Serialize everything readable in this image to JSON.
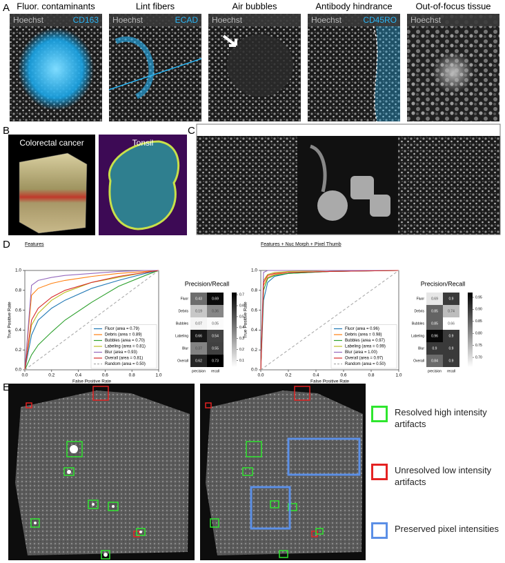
{
  "panel_a": {
    "label": "A",
    "tiles": [
      {
        "title": "Fluor. contaminants",
        "stains": [
          "Hoechst",
          "CD163"
        ]
      },
      {
        "title": "Lint fibers",
        "stains": [
          "Hoechst",
          "ECAD"
        ]
      },
      {
        "title": "Air bubbles",
        "stains": [
          "Hoechst"
        ]
      },
      {
        "title": "Antibody hindrance",
        "stains": [
          "Hoechst",
          "CD45RO"
        ]
      },
      {
        "title": "Out-of-focus tissue",
        "stains": [
          "Hoechst"
        ]
      }
    ]
  },
  "panel_b": {
    "label": "B",
    "images": [
      "Colorectal cancer",
      "Tonsil"
    ]
  },
  "panel_c": {
    "label": "C"
  },
  "panel_d": {
    "label": "D"
  },
  "panel_e": {
    "label": "E",
    "legend": [
      {
        "text": "Resolved high intensity artifacts",
        "color": "#2ee62e"
      },
      {
        "text": "Unresolved low intensity artifacts",
        "color": "#e42222"
      },
      {
        "text": "Preserved pixel intensities",
        "color": "#5b8fe6"
      }
    ]
  },
  "chart_data": [
    {
      "type": "line",
      "title": "Features",
      "x_label": "False Positive Rate",
      "y_label": "True Positive Rate",
      "x": [
        0,
        0.05,
        0.1,
        0.2,
        0.3,
        0.5,
        0.7,
        0.9,
        1
      ],
      "series": [
        {
          "name": "Fluor (area = 0.79)",
          "color": "#1f77b4",
          "values": [
            0,
            0.35,
            0.5,
            0.62,
            0.7,
            0.82,
            0.9,
            0.97,
            1
          ]
        },
        {
          "name": "Debris (area = 0.89)",
          "color": "#ff7f0e",
          "values": [
            0,
            0.75,
            0.82,
            0.87,
            0.9,
            0.94,
            0.97,
            0.99,
            1
          ]
        },
        {
          "name": "Bubbles (area = 0.70)",
          "color": "#2ca02c",
          "values": [
            0,
            0.15,
            0.25,
            0.38,
            0.5,
            0.68,
            0.84,
            0.95,
            1
          ]
        },
        {
          "name": "Labeling (area = 0.81)",
          "color": "#bcbd22",
          "values": [
            0,
            0.45,
            0.57,
            0.7,
            0.78,
            0.88,
            0.93,
            0.98,
            1
          ]
        },
        {
          "name": "Blur (area = 0.93)",
          "color": "#9467bd",
          "values": [
            0,
            0.85,
            0.9,
            0.93,
            0.95,
            0.97,
            0.99,
            1,
            1
          ]
        },
        {
          "name": "Overall (area = 0.81)",
          "color": "#d62728",
          "values": [
            0,
            0.5,
            0.62,
            0.73,
            0.8,
            0.88,
            0.94,
            0.98,
            1
          ]
        },
        {
          "name": "Random (area = 0.50)",
          "color": "#aaaaaa",
          "linestyle": "dashed",
          "values": [
            0,
            0.05,
            0.1,
            0.2,
            0.3,
            0.5,
            0.7,
            0.9,
            1
          ]
        }
      ],
      "xlim": [
        0,
        1
      ],
      "ylim": [
        0,
        1
      ],
      "xticks": [
        {
          "value": 0,
          "label": "0.0"
        },
        0.2,
        0.4,
        0.6,
        0.8,
        {
          "value": 1,
          "label": "1.0"
        }
      ],
      "yticks": [
        {
          "value": 0,
          "label": "0.0"
        },
        0.2,
        0.4,
        0.6,
        0.8,
        {
          "value": 1,
          "label": "1.0"
        }
      ],
      "legend": "lower right"
    },
    {
      "type": "heatmap",
      "title": "Precision/Recall",
      "rows": [
        "Fluor",
        "Debris",
        "Bubbles",
        "Labeling",
        "Blur",
        "Overall"
      ],
      "columns": [
        "precision",
        "recall"
      ],
      "values": [
        [
          0.43,
          0.69
        ],
        [
          0.19,
          0.36
        ],
        [
          0.07,
          0.05
        ],
        [
          0.66,
          0.54
        ],
        [
          0.37,
          0.55
        ],
        [
          0.62,
          0.73
        ]
      ],
      "zlim": [
        0.04,
        0.72
      ],
      "zticks": [
        0.1,
        0.2,
        0.3,
        0.4,
        0.5,
        0.6,
        0.7
      ],
      "colormap": "Greys"
    },
    {
      "type": "line",
      "title": "Features + Nuc Morph + Pixel Thumb",
      "x_label": "False Positive Rate",
      "y_label": "True Positive Rate",
      "x": [
        0,
        0.02,
        0.05,
        0.1,
        0.2,
        0.5,
        1
      ],
      "series": [
        {
          "name": "Fluor (area = 0.96)",
          "color": "#1f77b4",
          "values": [
            0,
            0.7,
            0.88,
            0.94,
            0.97,
            0.99,
            1
          ]
        },
        {
          "name": "Debris (area = 0.98)",
          "color": "#ff7f0e",
          "values": [
            0,
            0.85,
            0.93,
            0.96,
            0.98,
            0.99,
            1
          ]
        },
        {
          "name": "Bubbles (area = 0.97)",
          "color": "#2ca02c",
          "values": [
            0,
            0.8,
            0.92,
            0.95,
            0.97,
            0.99,
            1
          ]
        },
        {
          "name": "Labeling (area = 0.99)",
          "color": "#bcbd22",
          "values": [
            0,
            0.9,
            0.96,
            0.98,
            0.99,
            1,
            1
          ]
        },
        {
          "name": "Blur (area = 1.00)",
          "color": "#9467bd",
          "values": [
            0,
            0.98,
            1,
            1,
            1,
            1,
            1
          ]
        },
        {
          "name": "Overall (area = 0.97)",
          "color": "#d62728",
          "values": [
            0,
            0.88,
            0.95,
            0.97,
            0.98,
            0.99,
            1
          ]
        },
        {
          "name": "Random (area = 0.50)",
          "color": "#aaaaaa",
          "linestyle": "dashed",
          "values": [
            0,
            0.02,
            0.05,
            0.1,
            0.2,
            0.5,
            1
          ]
        }
      ],
      "xlim": [
        0,
        1
      ],
      "ylim": [
        0,
        1
      ],
      "xticks": [
        {
          "value": 0,
          "label": "0.0"
        },
        0.2,
        0.4,
        0.6,
        0.8,
        {
          "value": 1,
          "label": "1.0"
        }
      ],
      "yticks": [
        {
          "value": 0,
          "label": "0.0"
        },
        0.2,
        0.4,
        0.6,
        0.8,
        {
          "value": 1,
          "label": "1.0"
        }
      ],
      "legend": "lower right"
    },
    {
      "type": "heatmap",
      "title": "Precision/Recall",
      "rows": [
        "Fluor",
        "Debris",
        "Bubbles",
        "Labeling",
        "Blur",
        "Overall"
      ],
      "columns": [
        "precision",
        "recall"
      ],
      "values": [
        [
          0.69,
          0.9
        ],
        [
          0.85,
          0.74
        ],
        [
          0.85,
          0.66
        ],
        [
          0.96,
          0.9
        ],
        [
          0.9,
          0.9
        ],
        [
          0.84,
          0.9
        ]
      ],
      "zlim": [
        0.66,
        0.97
      ],
      "zticks": [
        {
          "value": 0.7,
          "label": "0.70"
        },
        0.75,
        {
          "value": 0.8,
          "label": "0.80"
        },
        0.85,
        {
          "value": 0.9,
          "label": "0.90"
        },
        0.95
      ],
      "colormap": "Greys"
    }
  ]
}
